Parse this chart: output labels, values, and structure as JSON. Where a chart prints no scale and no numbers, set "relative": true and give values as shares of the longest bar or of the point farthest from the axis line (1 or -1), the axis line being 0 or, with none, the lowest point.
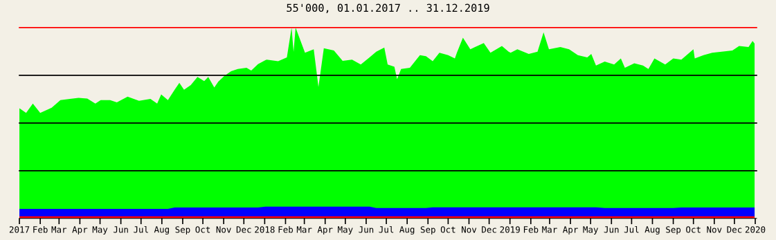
{
  "chart_data": {
    "type": "area",
    "title": "55'000, 01.01.2017 .. 31.12.2019",
    "relative": true,
    "grid": false,
    "legend": false,
    "tick_labels": "x",
    "x": [
      "2017-01-01",
      "2017-01-11",
      "2017-01-21",
      "2017-02-01",
      "2017-02-18",
      "2017-03-03",
      "2017-03-17",
      "2017-03-30",
      "2017-04-12",
      "2017-04-24",
      "2017-04-27",
      "2017-05-02",
      "2017-05-16",
      "2017-05-19",
      "2017-05-26",
      "2017-06-11",
      "2017-06-28",
      "2017-07-15",
      "2017-07-25",
      "2017-07-31",
      "2017-08-10",
      "2017-08-20",
      "2017-08-27",
      "2017-09-03",
      "2017-09-13",
      "2017-09-23",
      "2017-10-03",
      "2017-10-09",
      "2017-10-18",
      "2017-10-24",
      "2017-11-02",
      "2017-11-12",
      "2017-11-22",
      "2017-12-05",
      "2017-12-12",
      "2017-12-22",
      "2018-01-02",
      "2018-01-04",
      "2018-01-21",
      "2018-02-03",
      "2018-02-10",
      "2018-02-13",
      "2018-02-16",
      "2018-03-02",
      "2018-03-15",
      "2018-03-22",
      "2018-03-30",
      "2018-04-14",
      "2018-04-27",
      "2018-05-11",
      "2018-05-24",
      "2018-06-06",
      "2018-06-16",
      "2018-06-28",
      "2018-07-03",
      "2018-07-13",
      "2018-07-17",
      "2018-07-23",
      "2018-08-05",
      "2018-08-20",
      "2018-08-29",
      "2018-09-08",
      "2018-09-18",
      "2018-10-01",
      "2018-10-11",
      "2018-10-14",
      "2018-10-23",
      "2018-11-03",
      "2018-11-10",
      "2018-11-23",
      "2018-12-03",
      "2018-12-20",
      "2018-12-30",
      "2019-01-02",
      "2019-01-12",
      "2019-01-29",
      "2019-02-11",
      "2019-02-20",
      "2019-02-28",
      "2019-03-08",
      "2019-03-17",
      "2019-03-30",
      "2019-04-12",
      "2019-04-26",
      "2019-05-02",
      "2019-05-09",
      "2019-05-22",
      "2019-06-05",
      "2019-06-15",
      "2019-06-21",
      "2019-07-05",
      "2019-07-18",
      "2019-07-26",
      "2019-08-04",
      "2019-08-20",
      "2019-09-01",
      "2019-09-13",
      "2019-10-01",
      "2019-10-03",
      "2019-10-16",
      "2019-10-29",
      "2019-11-12",
      "2019-11-20",
      "2019-11-28",
      "2019-12-08",
      "2019-12-22",
      "2019-12-28",
      "2019-12-31"
    ],
    "series": [
      {
        "color": "#00ff00",
        "values": [
          0.577,
          0.553,
          0.602,
          0.553,
          0.58,
          0.62,
          0.626,
          0.632,
          0.628,
          0.602,
          null,
          0.62,
          0.62,
          null,
          0.608,
          0.638,
          0.616,
          0.626,
          0.602,
          0.65,
          0.62,
          0.674,
          0.711,
          0.674,
          0.699,
          0.741,
          0.72,
          0.741,
          0.686,
          0.717,
          0.747,
          0.771,
          0.783,
          0.789,
          0.775,
          0.808,
          0.829,
          0.832,
          0.824,
          0.844,
          1.0,
          0.874,
          1.0,
          0.868,
          0.886,
          0.689,
          0.892,
          0.88,
          0.826,
          0.832,
          0.807,
          0.844,
          0.874,
          0.895,
          0.807,
          0.795,
          0.73,
          0.783,
          0.789,
          0.856,
          0.85,
          0.824,
          0.868,
          0.856,
          0.838,
          0.868,
          0.947,
          0.886,
          0.898,
          0.919,
          0.868,
          0.904,
          0.874,
          0.868,
          0.886,
          0.862,
          0.874,
          0.975,
          0.886,
          null,
          0.898,
          0.886,
          0.856,
          0.844,
          0.862,
          0.801,
          0.822,
          0.807,
          0.838,
          0.789,
          0.813,
          0.801,
          0.783,
          0.838,
          0.807,
          0.838,
          0.832,
          0.886,
          0.838,
          0.856,
          0.868,
          0.874,
          null,
          0.88,
          0.904,
          0.898,
          0.93,
          0.916
        ]
      },
      {
        "color": "#0000ff",
        "values": [
          0.05,
          0.05,
          0.05,
          0.05,
          0.05,
          0.05,
          0.05,
          0.05,
          0.05,
          0.05,
          null,
          0.05,
          0.05,
          null,
          0.05,
          0.05,
          0.05,
          0.05,
          0.05,
          0.05,
          0.05,
          0.057,
          0.057,
          0.057,
          0.057,
          0.057,
          0.057,
          0.057,
          0.057,
          0.057,
          0.057,
          0.057,
          0.057,
          0.057,
          0.057,
          0.057,
          0.062,
          0.062,
          0.062,
          0.062,
          0.062,
          0.062,
          0.062,
          0.062,
          0.062,
          0.062,
          0.062,
          0.062,
          0.062,
          0.062,
          0.062,
          0.062,
          0.054,
          0.054,
          0.054,
          0.054,
          0.054,
          0.054,
          0.054,
          0.054,
          0.054,
          0.058,
          0.058,
          0.058,
          0.058,
          0.058,
          0.058,
          0.058,
          0.058,
          0.058,
          0.058,
          0.058,
          0.058,
          0.058,
          0.058,
          0.058,
          0.058,
          0.058,
          0.058,
          null,
          0.058,
          0.058,
          0.058,
          0.058,
          0.058,
          0.058,
          0.054,
          0.054,
          0.054,
          0.054,
          0.054,
          0.054,
          0.054,
          0.054,
          0.054,
          0.054,
          0.057,
          0.057,
          0.057,
          0.057,
          0.057,
          0.057,
          null,
          0.057,
          0.057,
          0.057,
          0.057,
          0.057
        ]
      },
      {
        "color": "#ff0000",
        "values": [
          0.011,
          0.011,
          0.011,
          0.011,
          0.011,
          0.011,
          0.011,
          0.011,
          0.011,
          0.011,
          null,
          0.011,
          0.011,
          null,
          0.011,
          0.011,
          0.011,
          0.011,
          0.011,
          0.011,
          0.011,
          0.011,
          0.011,
          0.011,
          0.011,
          0.011,
          0.011,
          0.011,
          0.011,
          0.011,
          0.011,
          0.011,
          0.011,
          0.011,
          0.011,
          0.011,
          0.011,
          0.011,
          0.011,
          0.011,
          0.011,
          0.011,
          0.011,
          0.011,
          0.011,
          0.011,
          0.011,
          0.011,
          0.011,
          0.011,
          0.011,
          0.011,
          0.011,
          0.011,
          0.011,
          0.011,
          0.011,
          0.011,
          0.011,
          0.011,
          0.011,
          0.011,
          0.011,
          0.011,
          0.011,
          0.011,
          0.011,
          0.011,
          0.011,
          0.011,
          0.011,
          0.011,
          0.011,
          0.011,
          0.011,
          0.011,
          0.011,
          0.011,
          0.011,
          null,
          0.011,
          0.011,
          0.011,
          0.011,
          0.011,
          0.011,
          0.011,
          0.011,
          0.011,
          0.011,
          0.011,
          0.011,
          0.011,
          0.011,
          0.011,
          0.011,
          0.011,
          0.011,
          0.011,
          0.011,
          0.011,
          0.011,
          null,
          0.011,
          0.011,
          0.011,
          0.011,
          0.011
        ]
      }
    ],
    "xlim": [
      "2017-01-01",
      "2020-01-03"
    ],
    "xticks": [
      "2017",
      {
        "value": "2017-02-01",
        "label": "Feb"
      },
      {
        "value": "2017-03-01",
        "label": "Mar"
      },
      {
        "value": "2017-04-01",
        "label": "Apr"
      },
      {
        "value": "2017-05-01",
        "label": "May"
      },
      {
        "value": "2017-06-01",
        "label": "Jun"
      },
      {
        "value": "2017-07-01",
        "label": "Jul"
      },
      {
        "value": "2017-08-01",
        "label": "Aug"
      },
      {
        "value": "2017-09-01",
        "label": "Sep"
      },
      {
        "value": "2017-10-01",
        "label": "Oct"
      },
      {
        "value": "2017-11-01",
        "label": "Nov"
      },
      {
        "value": "2017-12-01",
        "label": "Dec"
      },
      "2018",
      {
        "value": "2018-02-01",
        "label": "Feb"
      },
      {
        "value": "2018-03-01",
        "label": "Mar"
      },
      {
        "value": "2018-04-01",
        "label": "Apr"
      },
      {
        "value": "2018-05-01",
        "label": "May"
      },
      {
        "value": "2018-06-01",
        "label": "Jun"
      },
      {
        "value": "2018-07-01",
        "label": "Jul"
      },
      {
        "value": "2018-08-01",
        "label": "Aug"
      },
      {
        "value": "2018-09-01",
        "label": "Sep"
      },
      {
        "value": "2018-10-01",
        "label": "Oct"
      },
      {
        "value": "2018-11-01",
        "label": "Nov"
      },
      {
        "value": "2018-12-01",
        "label": "Dec"
      },
      "2019",
      {
        "value": "2019-02-01",
        "label": "Feb"
      },
      {
        "value": "2019-03-01",
        "label": "Mar"
      },
      {
        "value": "2019-04-01",
        "label": "Apr"
      },
      {
        "value": "2019-05-01",
        "label": "May"
      },
      {
        "value": "2019-06-01",
        "label": "Jun"
      },
      {
        "value": "2019-07-01",
        "label": "Jul"
      },
      {
        "value": "2019-08-01",
        "label": "Aug"
      },
      {
        "value": "2019-09-01",
        "label": "Sep"
      },
      {
        "value": "2019-10-01",
        "label": "Oct"
      },
      {
        "value": "2019-11-01",
        "label": "Nov"
      },
      {
        "value": "2019-12-01",
        "label": "Dec"
      },
      "2020"
    ],
    "ref_lines": [
      {
        "axis": "y",
        "value": 0.25,
        "color": "#000000"
      },
      {
        "axis": "y",
        "value": 0.5,
        "color": "#000000"
      },
      {
        "axis": "y",
        "value": 0.75,
        "color": "#000000"
      },
      {
        "axis": "y",
        "value": 1,
        "color": "#ff0000"
      }
    ]
  }
}
